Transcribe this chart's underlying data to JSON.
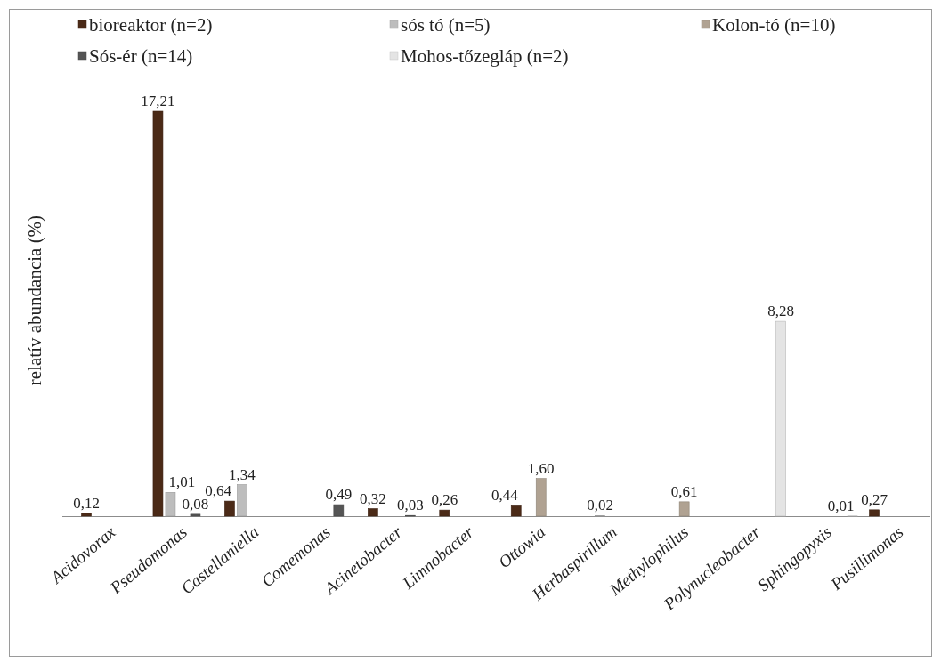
{
  "chart_data": {
    "type": "bar",
    "ylabel": "relatív abundancia (%)",
    "categories": [
      "Acidovorax",
      "Pseudomonas",
      "Castellaniella",
      "Comemonas",
      "Acinetobacter",
      "Limnobacter",
      "Ottowia",
      "Herbaspirillum",
      "Methylophilus",
      "Polynucleobacter",
      "Sphingopyxis",
      "Pusillimonas"
    ],
    "series": [
      {
        "name": "bioreaktor (n=2)",
        "color": "#4b2a17",
        "values": [
          0.12,
          17.21,
          0.64,
          null,
          0.32,
          0.26,
          0.44,
          null,
          null,
          null,
          null,
          0.27
        ],
        "value_labels": [
          "0,12",
          "17,21",
          "0,64",
          null,
          "0,32",
          "0,26",
          "0,44",
          null,
          null,
          null,
          null,
          "0,27"
        ]
      },
      {
        "name": "sós tó (n=5)",
        "color": "#bdbdbd",
        "values": [
          null,
          1.01,
          1.34,
          null,
          null,
          null,
          null,
          0.02,
          null,
          null,
          null,
          null
        ],
        "value_labels": [
          null,
          "1,01",
          "1,34",
          null,
          null,
          null,
          null,
          "0,02",
          null,
          null,
          null,
          null
        ]
      },
      {
        "name": "Kolon-tó (n=10)",
        "color": "#b0a292",
        "values": [
          null,
          null,
          null,
          null,
          null,
          null,
          1.6,
          null,
          0.61,
          null,
          null,
          null
        ],
        "value_labels": [
          null,
          null,
          null,
          null,
          null,
          null,
          "1,60",
          null,
          "0,61",
          null,
          null,
          null
        ]
      },
      {
        "name": "Sós-ér (n=14)",
        "color": "#555555",
        "values": [
          null,
          0.08,
          null,
          0.49,
          0.03,
          null,
          null,
          null,
          null,
          null,
          null,
          null
        ],
        "value_labels": [
          null,
          "0,08",
          null,
          "0,49",
          "0,03",
          null,
          null,
          null,
          null,
          null,
          null,
          null
        ]
      },
      {
        "name": "Mohos-tőzegláp (n=2)",
        "color": "#e4e4e4",
        "values": [
          null,
          null,
          null,
          null,
          null,
          null,
          null,
          null,
          null,
          8.28,
          0.01,
          null
        ],
        "value_labels": [
          null,
          null,
          null,
          null,
          null,
          null,
          null,
          null,
          null,
          "8,28",
          "0,01",
          null
        ]
      }
    ],
    "legend": "top"
  }
}
